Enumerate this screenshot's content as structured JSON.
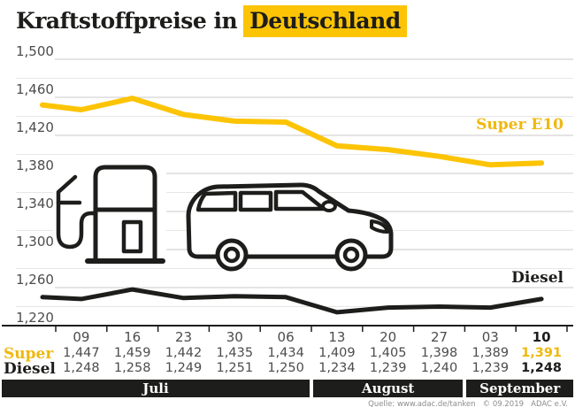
{
  "title": {
    "prefix": "Kraftstoffpreise in",
    "highlight": "Deutschland"
  },
  "source": "Quelle: www.adac.de/tanken   © 09.2019   ADAC e.V.",
  "colors": {
    "ink": "#1d1d1b",
    "gray": "#4c4c4c",
    "accent_yellow": "#fcc405",
    "accent_yellow_text": "#efb810",
    "grid_minor": "#e6e6e6",
    "grid_major": "#c8c8c8",
    "band_bg": "#1d1d1b"
  },
  "chart_data": {
    "type": "line",
    "title": "Kraftstoffpreise in Deutschland",
    "categories": [
      "09",
      "16",
      "23",
      "30",
      "06",
      "13",
      "20",
      "27",
      "03",
      "10"
    ],
    "months": [
      {
        "label": "Juli",
        "cols": 5
      },
      {
        "label": "August",
        "cols": 3
      },
      {
        "label": "September",
        "cols": 2
      }
    ],
    "y_axis": {
      "min": 1.22,
      "max": 1.5,
      "minor_step": 0.02,
      "label_step": 0.04
    },
    "grid": true,
    "legend_position": "labels-at-line-right",
    "series": [
      {
        "name": "Super",
        "line_label": "Super E10",
        "color": "#fcc405",
        "lead_value": 1.452,
        "values": [
          1.447,
          1.459,
          1.442,
          1.435,
          1.434,
          1.409,
          1.405,
          1.398,
          1.389,
          1.391
        ]
      },
      {
        "name": "Diesel",
        "line_label": "Diesel",
        "color": "#1d1d1b",
        "lead_value": 1.25,
        "values": [
          1.248,
          1.258,
          1.249,
          1.251,
          1.25,
          1.234,
          1.239,
          1.24,
          1.239,
          1.248
        ]
      }
    ]
  }
}
